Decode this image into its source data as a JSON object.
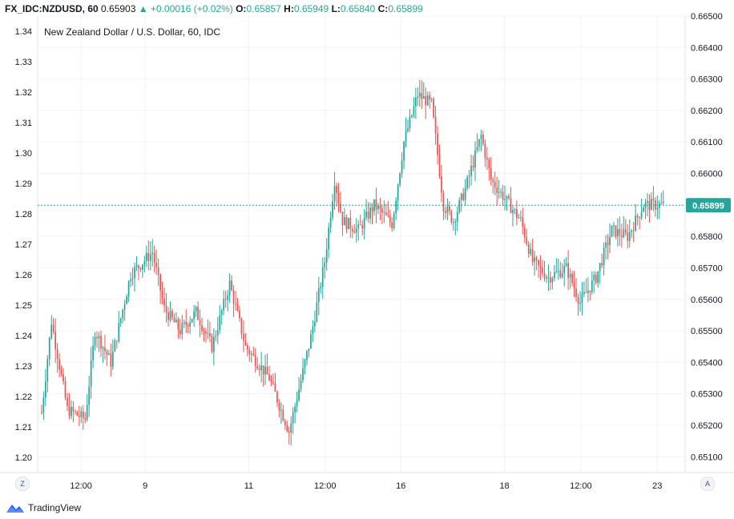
{
  "header": {
    "symbol": "FX_IDC:NZDUSD, 60",
    "last": "0.65903",
    "arrow": "▲",
    "change": "+0.00016 (+0.02%)",
    "o_label": "O:",
    "o_value": "0.65857",
    "h_label": "H:",
    "h_value": "0.65949",
    "l_label": "L:",
    "l_value": "0.65840",
    "c_label": "C:",
    "c_value": "0.65899"
  },
  "chart_data": {
    "type": "candlestick",
    "title": "New Zealand Dollar / U.S. Dollar, 60, IDC",
    "left_axis": {
      "ticks": [
        "1.20",
        "1.21",
        "1.22",
        "1.23",
        "1.24",
        "1.25",
        "1.26",
        "1.27",
        "1.28",
        "1.29",
        "1.30",
        "1.31",
        "1.32",
        "1.33",
        "1.34"
      ],
      "range": [
        1.195,
        1.345
      ]
    },
    "right_axis": {
      "ticks": [
        "0.65100",
        "0.65200",
        "0.65300",
        "0.65400",
        "0.65500",
        "0.65600",
        "0.65700",
        "0.65800",
        "0.65900",
        "0.66000",
        "0.66100",
        "0.66200",
        "0.66300",
        "0.66400",
        "0.66500"
      ],
      "range": [
        0.6505,
        0.665
      ]
    },
    "x_ticks": [
      {
        "label": "12:00",
        "pos": 0.067
      },
      {
        "label": "9",
        "pos": 0.166
      },
      {
        "label": "11",
        "pos": 0.326
      },
      {
        "label": "12:00",
        "pos": 0.444
      },
      {
        "label": "16",
        "pos": 0.561
      },
      {
        "label": "18",
        "pos": 0.721
      },
      {
        "label": "12:00",
        "pos": 0.839
      },
      {
        "label": "23",
        "pos": 0.957
      }
    ],
    "current_price": "0.65899",
    "current_value": 0.65899,
    "up_color": "#26a69a",
    "down_color": "#ef5350",
    "price_line_color": "#26a69a",
    "anchors": [
      {
        "i": 0,
        "p": 0.6524
      },
      {
        "i": 5,
        "p": 0.6553
      },
      {
        "i": 13,
        "p": 0.6525
      },
      {
        "i": 22,
        "p": 0.6522
      },
      {
        "i": 27,
        "p": 0.655
      },
      {
        "i": 35,
        "p": 0.654
      },
      {
        "i": 45,
        "p": 0.6568
      },
      {
        "i": 56,
        "p": 0.6575
      },
      {
        "i": 62,
        "p": 0.6557
      },
      {
        "i": 70,
        "p": 0.655
      },
      {
        "i": 78,
        "p": 0.6556
      },
      {
        "i": 86,
        "p": 0.6545
      },
      {
        "i": 95,
        "p": 0.6565
      },
      {
        "i": 103,
        "p": 0.6545
      },
      {
        "i": 115,
        "p": 0.6535
      },
      {
        "i": 125,
        "p": 0.6518
      },
      {
        "i": 136,
        "p": 0.6548
      },
      {
        "i": 143,
        "p": 0.6572
      },
      {
        "i": 148,
        "p": 0.6598
      },
      {
        "i": 152,
        "p": 0.6585
      },
      {
        "i": 160,
        "p": 0.6582
      },
      {
        "i": 168,
        "p": 0.659
      },
      {
        "i": 177,
        "p": 0.6584
      },
      {
        "i": 183,
        "p": 0.661
      },
      {
        "i": 190,
        "p": 0.6625
      },
      {
        "i": 197,
        "p": 0.6622
      },
      {
        "i": 203,
        "p": 0.659
      },
      {
        "i": 208,
        "p": 0.6585
      },
      {
        "i": 214,
        "p": 0.6595
      },
      {
        "i": 222,
        "p": 0.6612
      },
      {
        "i": 227,
        "p": 0.6598
      },
      {
        "i": 234,
        "p": 0.6592
      },
      {
        "i": 242,
        "p": 0.6585
      },
      {
        "i": 248,
        "p": 0.6572
      },
      {
        "i": 256,
        "p": 0.6567
      },
      {
        "i": 265,
        "p": 0.657
      },
      {
        "i": 272,
        "p": 0.6559
      },
      {
        "i": 280,
        "p": 0.6567
      },
      {
        "i": 288,
        "p": 0.6582
      },
      {
        "i": 296,
        "p": 0.658
      },
      {
        "i": 304,
        "p": 0.659
      },
      {
        "i": 314,
        "p": 0.659
      }
    ],
    "candle_count": 315
  },
  "buttons": {
    "scale_mode": "Z",
    "auto_scale": "A"
  },
  "brand": {
    "name": "TradingView"
  }
}
